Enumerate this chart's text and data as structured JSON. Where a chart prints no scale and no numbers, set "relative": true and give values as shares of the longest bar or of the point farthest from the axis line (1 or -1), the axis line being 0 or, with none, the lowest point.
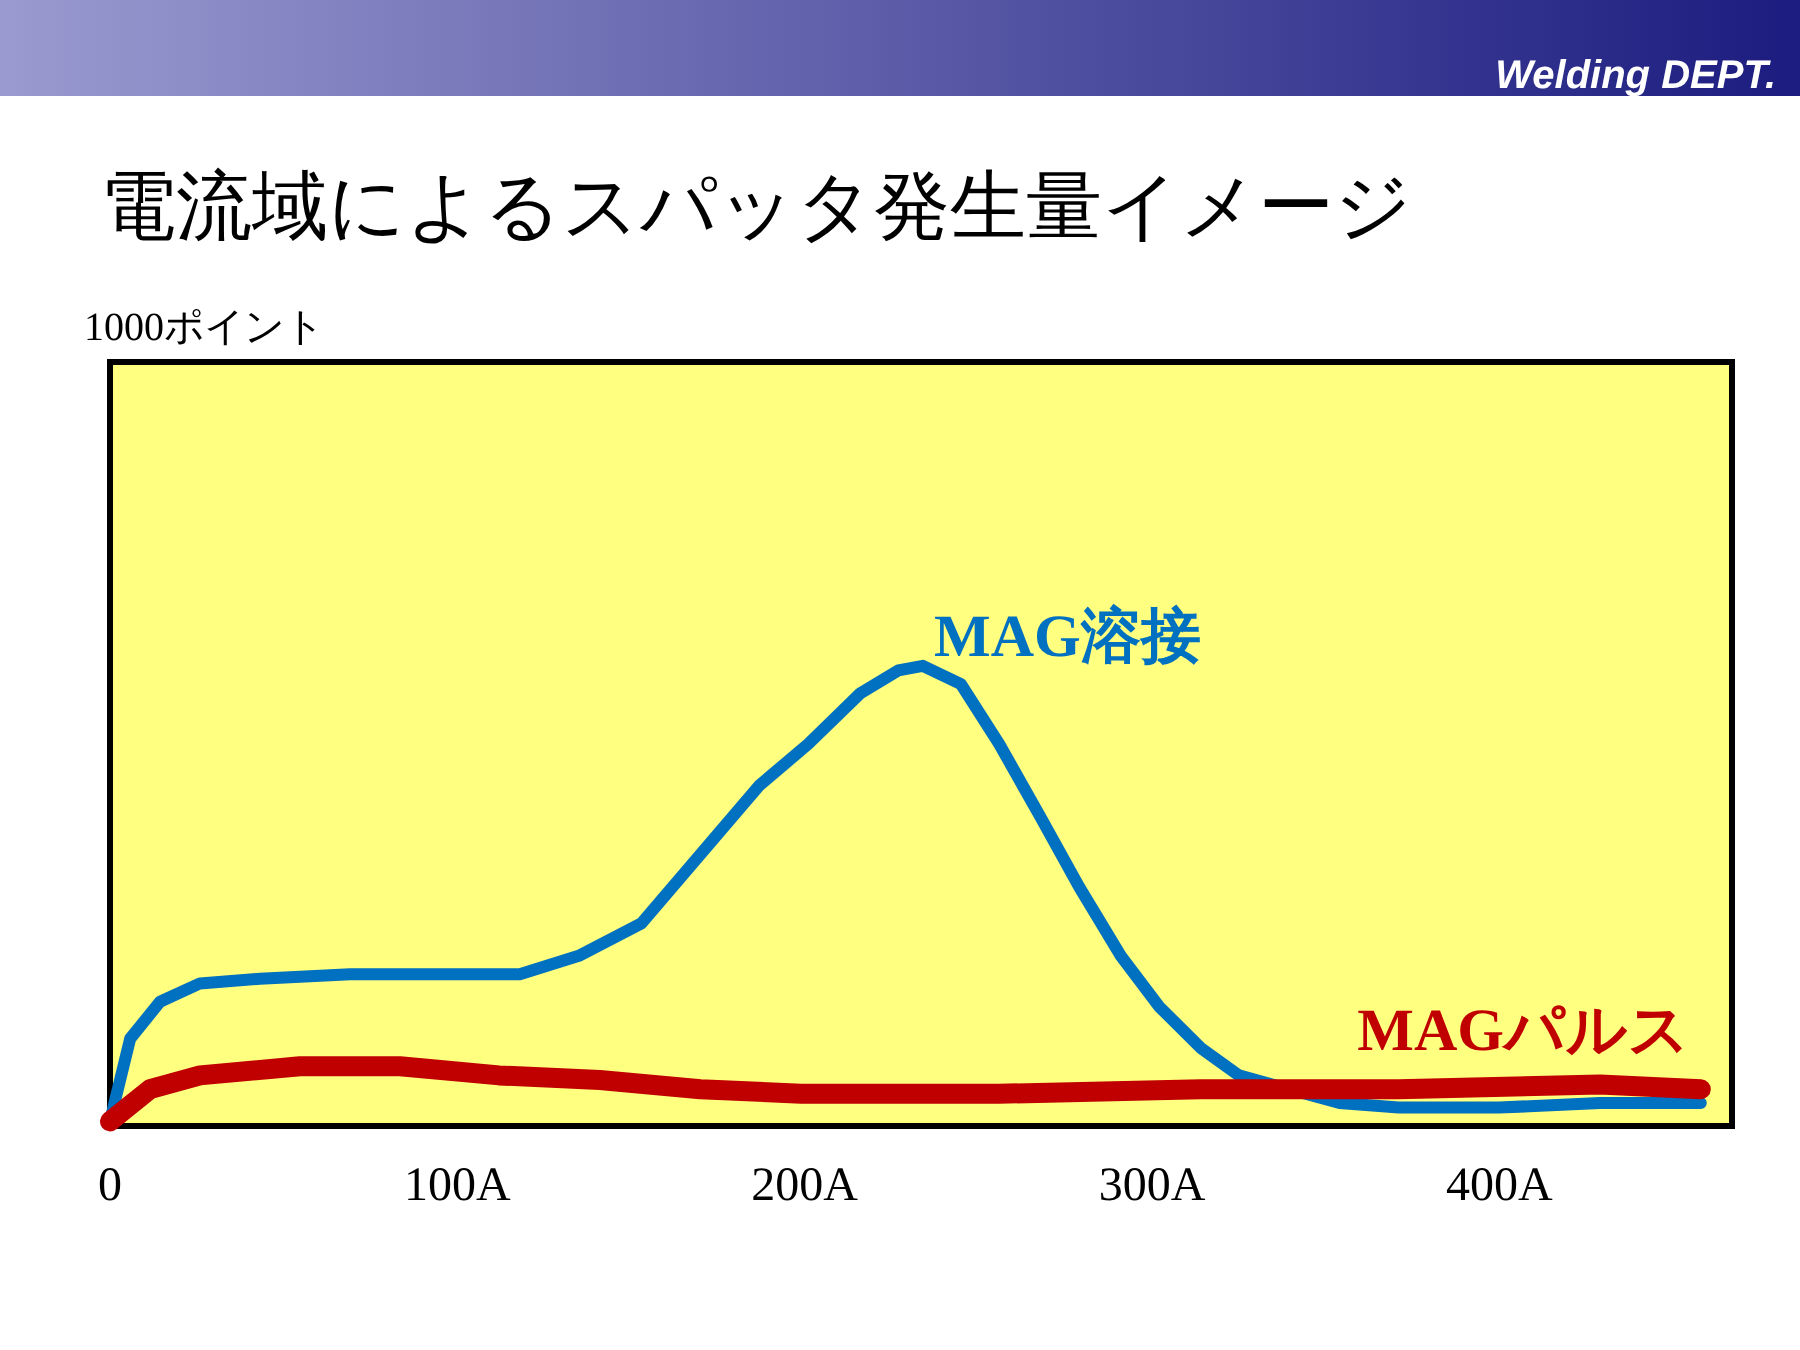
{
  "chart_data": {
    "type": "line",
    "title": "電流域によるスパッタ発生量イメージ",
    "annotations": [
      "Welding DEPT.",
      "1000ポイント"
    ],
    "relative": true,
    "xlim": [
      0,
      467
    ],
    "xticks": [
      0,
      {
        "value": 100,
        "label": "100A"
      },
      {
        "value": 200,
        "label": "200A"
      },
      {
        "value": 300,
        "label": "300A"
      },
      {
        "value": 400,
        "label": "400A"
      }
    ],
    "series": [
      {
        "name": "MAG溶接",
        "color": "#0070c0",
        "x": [
          0,
          5.8,
          14.4,
          25.9,
          43.2,
          69.1,
          95,
          118,
          135,
          153,
          170,
          187,
          201,
          216,
          227,
          234,
          245,
          256,
          268,
          279,
          291,
          302,
          314,
          325,
          354,
          371,
          400,
          429,
          458
        ],
        "values": [
          0.01,
          0.19,
          0.27,
          0.31,
          0.32,
          0.33,
          0.33,
          0.33,
          0.37,
          0.44,
          0.59,
          0.74,
          0.83,
          0.94,
          0.99,
          1,
          0.96,
          0.83,
          0.67,
          0.52,
          0.37,
          0.26,
          0.17,
          0.11,
          0.05,
          0.04,
          0.04,
          0.05,
          0.05
        ]
      },
      {
        "name": "MAGパルス",
        "color": "#c00000",
        "x": [
          0,
          11.5,
          25.9,
          54.7,
          83.5,
          112,
          141,
          170,
          199,
          256,
          314,
          371,
          429,
          458
        ],
        "values": [
          0.01,
          0.08,
          0.11,
          0.13,
          0.13,
          0.11,
          0.1,
          0.08,
          0.07,
          0.07,
          0.08,
          0.08,
          0.09,
          0.08
        ]
      }
    ]
  }
}
